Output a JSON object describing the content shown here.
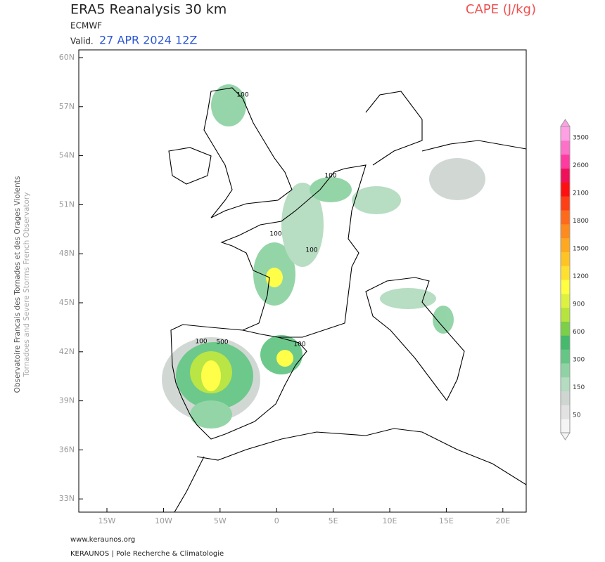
{
  "header": {
    "title": "ERA5 Reanalysis 30 km",
    "source": "ECMWF",
    "valid_label": "Valid.",
    "valid_date": "27 APR 2024 12Z",
    "variable": "CAPE (J/kg)"
  },
  "map": {
    "lat_labels": [
      "60N",
      "57N",
      "54N",
      "51N",
      "48N",
      "45N",
      "42N",
      "39N",
      "36N",
      "33N"
    ],
    "lon_labels": [
      "15W",
      "10W",
      "5W",
      "0",
      "5E",
      "10E",
      "15E",
      "20E"
    ],
    "contour_labels": [
      "100",
      "100",
      "100",
      "100",
      "100",
      "500",
      "100"
    ]
  },
  "colorbar": {
    "labels": [
      "3500",
      "2600",
      "2100",
      "1800",
      "1500",
      "1200",
      "900",
      "600",
      "300",
      "150",
      "50"
    ],
    "colors": [
      "#f4f4f4",
      "#e2e2e2",
      "#cfd6d2",
      "#b4dcc0",
      "#8fd3a4",
      "#66c686",
      "#45b96c",
      "#7ccf48",
      "#b6e43c",
      "#ddf240",
      "#ffff40",
      "#ffe030",
      "#ffc424",
      "#ffa820",
      "#ff8a1e",
      "#ff6a1a",
      "#ff4016",
      "#ff1010",
      "#f0105a",
      "#ff3aa0",
      "#ff70c8",
      "#ffa0e4"
    ]
  },
  "side_text": {
    "fr": "Observatoire Francais des Tornades et des Orages Violents",
    "en": "Tornadoes and Severe Storms French Observatory"
  },
  "footer": {
    "url": "www.keraunos.org",
    "org": "KERAUNOS | Pole Recherche & Climatologie"
  }
}
